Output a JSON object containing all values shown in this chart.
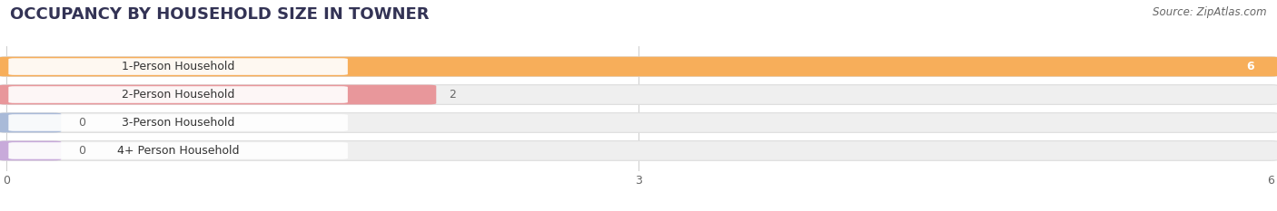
{
  "title": "OCCUPANCY BY HOUSEHOLD SIZE IN TOWNER",
  "source": "Source: ZipAtlas.com",
  "categories": [
    "1-Person Household",
    "2-Person Household",
    "3-Person Household",
    "4+ Person Household"
  ],
  "values": [
    6,
    2,
    0,
    0
  ],
  "bar_colors": [
    "#F7AE5A",
    "#E8979B",
    "#A9BAD8",
    "#C8AADA"
  ],
  "xlim": [
    0,
    6
  ],
  "xticks": [
    0,
    3,
    6
  ],
  "bar_height": 0.62,
  "background_color": "#ffffff",
  "bar_bg_color": "#efefef",
  "title_fontsize": 13,
  "label_fontsize": 9,
  "value_fontsize": 9,
  "source_fontsize": 8.5
}
